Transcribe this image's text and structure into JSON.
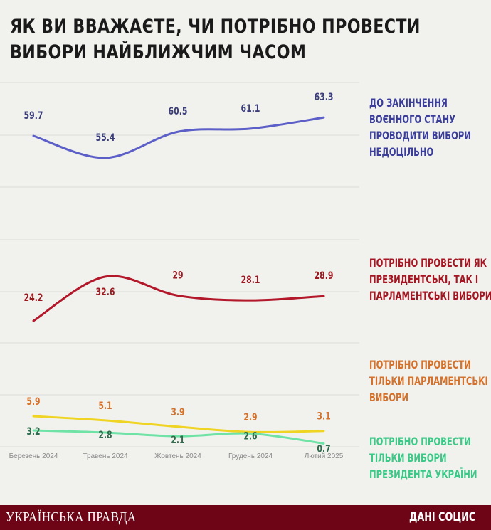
{
  "title": "ЯК ВИ ВВАЖАЄТЕ, ЧИ ПОТРІБНО ПРОВЕСТИ ВИБОРИ НАЙБЛИЖЧИМ ЧАСОМ",
  "footer": {
    "brand": "УКРАЇНСЬКА ПРАВДА",
    "source": "ДАНІ СОЦИС"
  },
  "chart_data": {
    "type": "line",
    "title": "ЯК ВИ ВВАЖАЄТЕ, ЧИ ПОТРІБНО ПРОВЕСТИ ВИБОРИ НАЙБЛИЖЧИМ ЧАСОМ",
    "categories": [
      "Березень 2024",
      "Травень 2024",
      "Жовтень 2024",
      "Грудень 2024",
      "Лютий 2025"
    ],
    "grid": true,
    "legend": "right",
    "series": [
      {
        "name": "ДО ЗАКІНЧЕННЯ ВОЄННОГО СТАНУ ПРОВОДИТИ ВИБОРИ НЕДОЦІЛЬНО",
        "values": [
          59.7,
          55.4,
          60.5,
          61.1,
          63.3
        ],
        "color": "#5b5fc7",
        "label_color": "#3a3d7a"
      },
      {
        "name": "ПОТРІБНО ПРОВЕСТИ ЯК ПРЕЗИДЕНТСЬКІ, ТАК І ПАРЛАМЕНТСЬКІ ВИБОРИ",
        "values": [
          24.2,
          32.6,
          29,
          28.1,
          28.9
        ],
        "color": "#b3172a",
        "label_color": "#9a1a22"
      },
      {
        "name": "ПОТРІБНО ПРОВЕСТИ ТІЛЬКИ ПАРЛАМЕНТСЬКІ ВИБОРИ",
        "values": [
          5.9,
          5.1,
          3.9,
          2.9,
          3.1
        ],
        "color": "#f0d424",
        "label_color": "#d4712a"
      },
      {
        "name": "ПОТРІБНО ПРОВЕСТИ ТІЛЬКИ ВИБОРИ ПРЕЗИДЕНТА УКРАЇНИ",
        "values": [
          3.2,
          2.8,
          2.1,
          2.6,
          0.7
        ],
        "color": "#6fe3a6",
        "label_color": "#2f6b4c"
      }
    ]
  }
}
